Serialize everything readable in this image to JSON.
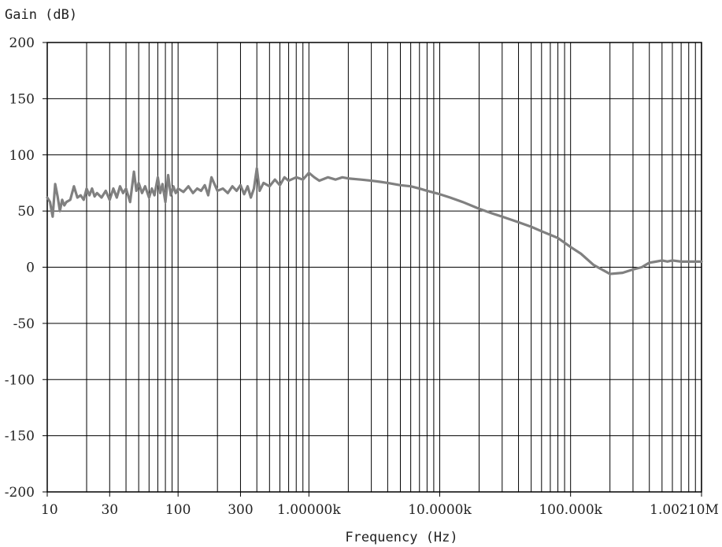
{
  "chart_data": {
    "type": "line",
    "title": "",
    "xlabel": "Frequency (Hz)",
    "ylabel": "Gain (dB)",
    "xscale": "log",
    "xlim": [
      10,
      1002100
    ],
    "ylim": [
      -200,
      200
    ],
    "grid": true,
    "legend": "none",
    "x_tick_labels": [
      {
        "value": 10,
        "label": "10"
      },
      {
        "value": 30,
        "label": "30"
      },
      {
        "value": 100,
        "label": "100"
      },
      {
        "value": 300,
        "label": "300"
      },
      {
        "value": 1000,
        "label": "1.00000k"
      },
      {
        "value": 10000,
        "label": "10.0000k"
      },
      {
        "value": 100000,
        "label": "100.000k"
      },
      {
        "value": 1002100,
        "label": "1.00210M"
      }
    ],
    "y_tick_labels": [
      {
        "value": 200,
        "label": "200"
      },
      {
        "value": 150,
        "label": "150"
      },
      {
        "value": 100,
        "label": "100"
      },
      {
        "value": 50,
        "label": "50"
      },
      {
        "value": 0,
        "label": "0"
      },
      {
        "value": -50,
        "label": "-50"
      },
      {
        "value": -100,
        "label": "-100"
      },
      {
        "value": -150,
        "label": "-150"
      },
      {
        "value": -200,
        "label": "-200"
      }
    ],
    "colors": {
      "series": "#808080",
      "grid": "#000000",
      "axes": "#000000",
      "text": "#222222"
    },
    "series": [
      {
        "x": [
          10,
          10.5,
          11,
          11.5,
          12,
          12.5,
          13,
          13.5,
          14,
          15,
          16,
          17,
          18,
          19,
          20,
          21,
          22,
          23,
          24,
          26,
          28,
          30,
          32,
          34,
          36,
          38,
          40,
          43,
          46,
          48,
          50,
          53,
          56,
          60,
          63,
          66,
          70,
          73,
          76,
          80,
          84,
          88,
          92,
          96,
          100,
          110,
          120,
          130,
          140,
          150,
          160,
          170,
          180,
          200,
          220,
          240,
          260,
          280,
          300,
          320,
          340,
          360,
          380,
          400,
          420,
          450,
          500,
          550,
          600,
          650,
          700,
          800,
          900,
          1000,
          1100,
          1200,
          1400,
          1600,
          1800,
          2000,
          2500,
          3000,
          3500,
          4000,
          5000,
          6000,
          7000,
          8000,
          10000,
          12000,
          15000,
          20000,
          25000,
          30000,
          40000,
          50000,
          60000,
          80000,
          100000,
          120000,
          150000,
          200000,
          250000,
          300000,
          350000,
          400000,
          450000,
          500000,
          550000,
          600000,
          700000,
          800000,
          900000,
          1002100
        ],
        "y": [
          62,
          58,
          45,
          74,
          63,
          50,
          60,
          55,
          58,
          60,
          72,
          62,
          64,
          60,
          70,
          64,
          70,
          63,
          66,
          62,
          68,
          60,
          70,
          62,
          72,
          66,
          70,
          58,
          85,
          68,
          75,
          66,
          72,
          62,
          70,
          64,
          80,
          66,
          74,
          58,
          82,
          64,
          72,
          66,
          70,
          67,
          72,
          66,
          70,
          68,
          73,
          64,
          80,
          68,
          70,
          66,
          72,
          68,
          73,
          65,
          72,
          62,
          70,
          88,
          68,
          75,
          72,
          78,
          73,
          80,
          77,
          80,
          78,
          84,
          80,
          77,
          80,
          78,
          80,
          79,
          78,
          77,
          76,
          75,
          73,
          72,
          70,
          68,
          65,
          62,
          58,
          52,
          48,
          45,
          40,
          36,
          32,
          26,
          18,
          12,
          2,
          -6,
          -5,
          -2,
          0,
          4,
          5,
          6,
          5,
          6,
          5,
          5,
          5,
          5
        ]
      }
    ]
  }
}
